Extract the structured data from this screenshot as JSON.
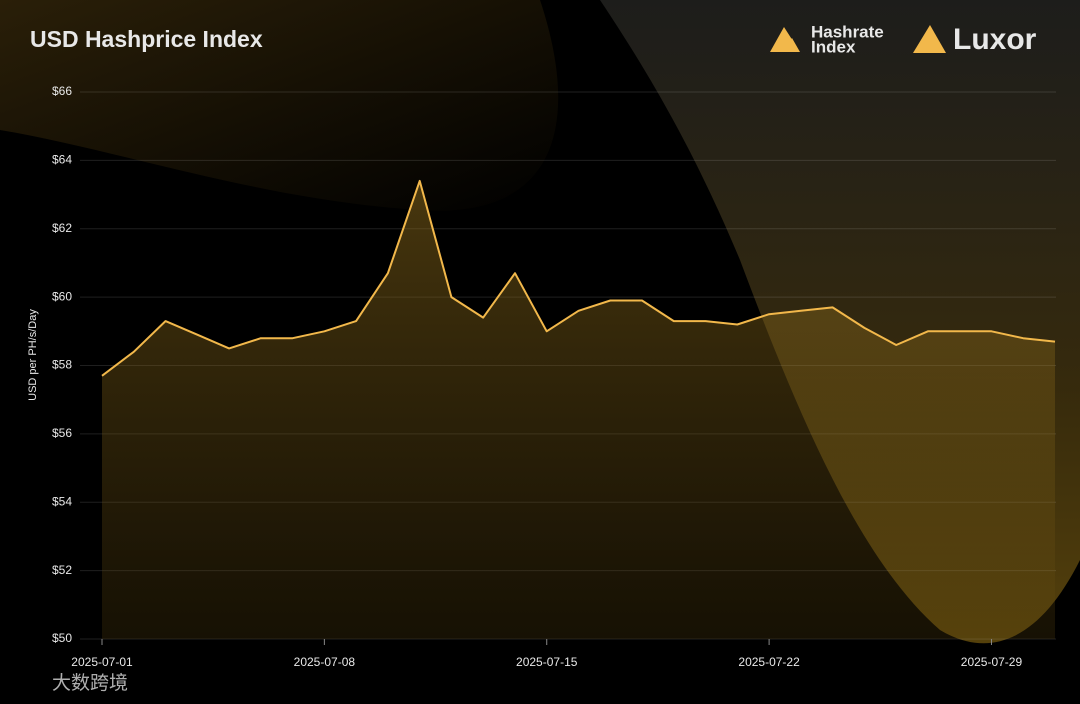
{
  "chart_data": {
    "type": "area",
    "title": "USD Hashprice Index",
    "y_label": "USD per PH/s/Day",
    "logos": [
      "Hashrate",
      "Index",
      "Luxor"
    ],
    "watermark": "大数跨境",
    "x": [
      "2025-07-01",
      "2025-07-02",
      "2025-07-03",
      "2025-07-04",
      "2025-07-05",
      "2025-07-06",
      "2025-07-07",
      "2025-07-08",
      "2025-07-09",
      "2025-07-10",
      "2025-07-11",
      "2025-07-12",
      "2025-07-13",
      "2025-07-14",
      "2025-07-15",
      "2025-07-16",
      "2025-07-17",
      "2025-07-18",
      "2025-07-19",
      "2025-07-20",
      "2025-07-21",
      "2025-07-22",
      "2025-07-23",
      "2025-07-24",
      "2025-07-25",
      "2025-07-26",
      "2025-07-27",
      "2025-07-28",
      "2025-07-29",
      "2025-07-30",
      "2025-07-31"
    ],
    "series": [
      {
        "name": "USD Hashprice",
        "color": "#f2b84b",
        "values": [
          57.7,
          58.4,
          59.3,
          58.9,
          58.5,
          58.8,
          58.8,
          59.0,
          59.3,
          60.7,
          63.4,
          60.0,
          59.4,
          60.7,
          59.0,
          59.6,
          59.9,
          59.9,
          59.3,
          59.3,
          59.2,
          59.5,
          59.6,
          59.7,
          59.1,
          58.6,
          59.0,
          59.0,
          59.0,
          58.8,
          58.7
        ]
      }
    ],
    "xticks": [
      "2025-07-01",
      "2025-07-08",
      "2025-07-15",
      "2025-07-22",
      "2025-07-29"
    ],
    "ylim": [
      50,
      66
    ],
    "yticks": [
      {
        "value": 50,
        "label": "$50"
      },
      {
        "value": 52,
        "label": "$52"
      },
      {
        "value": 54,
        "label": "$54"
      },
      {
        "value": 56,
        "label": "$56"
      },
      {
        "value": 58,
        "label": "$58"
      },
      {
        "value": 60,
        "label": "$60"
      },
      {
        "value": 62,
        "label": "$62"
      },
      {
        "value": 64,
        "label": "$64"
      },
      {
        "value": 66,
        "label": "$66"
      }
    ],
    "grid": true
  }
}
